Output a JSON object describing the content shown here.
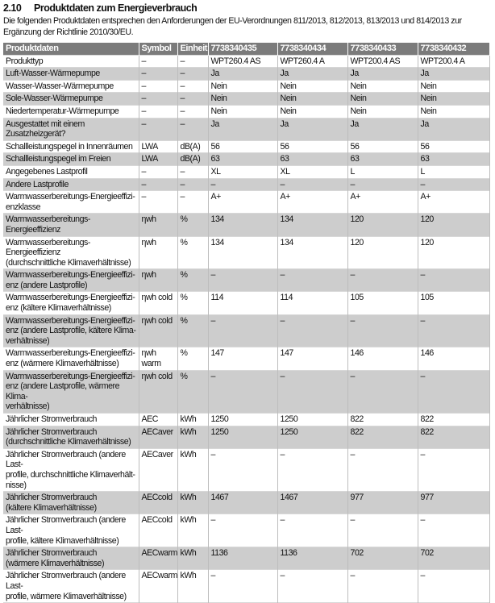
{
  "section": {
    "number": "2.10",
    "title": "Produktdaten zum Energieverbrauch"
  },
  "intro": "Die folgenden Produktdaten entsprechen den Anforderungen der EU-Verordnungen 811/2013, 812/2013, 813/2013 und 814/2013 zur Ergänzung der Richtlinie 2010/30/EU.",
  "table": {
    "headers": [
      "Produktdaten",
      "Symbol",
      "Einheit",
      "7738340435",
      "7738340434",
      "7738340433",
      "7738340432"
    ],
    "rows": [
      [
        "Produkttyp",
        "–",
        "–",
        "WPT260.4 AS",
        "WPT260.4 A",
        "WPT200.4 AS",
        "WPT200.4 A"
      ],
      [
        "Luft-Wasser-Wärmepumpe",
        "–",
        "–",
        "Ja",
        "Ja",
        "Ja",
        "Ja"
      ],
      [
        "Wasser-Wasser-Wärmepumpe",
        "–",
        "–",
        "Nein",
        "Nein",
        "Nein",
        "Nein"
      ],
      [
        "Sole-Wasser-Wärmepumpe",
        "–",
        "–",
        "Nein",
        "Nein",
        "Nein",
        "Nein"
      ],
      [
        "Niedertemperatur-Wärmepumpe",
        "–",
        "–",
        "Nein",
        "Nein",
        "Nein",
        "Nein"
      ],
      [
        "Ausgestattet mit einem Zusatzheizgerät?",
        "–",
        "–",
        "Ja",
        "Ja",
        "Ja",
        "Ja"
      ],
      [
        "Schallleistungspegel in Innenräumen",
        "LWA",
        "dB(A)",
        "56",
        "56",
        "56",
        "56"
      ],
      [
        "Schallleistungspegel im Freien",
        "LWA",
        "dB(A)",
        "63",
        "63",
        "63",
        "63"
      ],
      [
        "Angegebenes Lastprofil",
        "–",
        "–",
        "XL",
        "XL",
        "L",
        "L"
      ],
      [
        "Andere Lastprofile",
        "–",
        "–",
        "–",
        "–",
        "–",
        "–"
      ],
      [
        "Warmwasserbereitungs-Energieeffizi-\nenzklasse",
        "–",
        "–",
        "A+",
        "A+",
        "A+",
        "A+"
      ],
      [
        "Warmwasserbereitungs-Energieeffizienz",
        "ηwh",
        "%",
        "134",
        "134",
        "120",
        "120"
      ],
      [
        "Warmwasserbereitungs-Energieeffizienz\n(durchschnittliche Klimaverhältnisse)",
        "ηwh",
        "%",
        "134",
        "134",
        "120",
        "120"
      ],
      [
        "Warmwasserbereitungs-Energieeffizi-\nenz (andere Lastprofile)",
        "ηwh",
        "%",
        "–",
        "–",
        "–",
        "–"
      ],
      [
        "Warmwasserbereitungs-Energieeffizi-\nenz (kältere Klimaverhältnisse)",
        "ηwh cold",
        "%",
        "114",
        "114",
        "105",
        "105"
      ],
      [
        "Warmwasserbereitungs-Energieeffizi-\nenz (andere Lastprofile, kältere Klima-\nverhältnisse)",
        "ηwh cold",
        "%",
        "–",
        "–",
        "–",
        "–"
      ],
      [
        "Warmwasserbereitungs-Energieeffizi-\nenz (wärmere Klimaverhältnisse)",
        "ηwh warm",
        "%",
        "147",
        "147",
        "146",
        "146"
      ],
      [
        "Warmwasserbereitungs-Energieeffizi-\nenz (andere Lastprofile, wärmere Klima-\nverhältnisse)",
        "ηwh cold",
        "%",
        "–",
        "–",
        "–",
        "–"
      ],
      [
        "Jährlicher Stromverbrauch",
        "AEC",
        "kWh",
        "1250",
        "1250",
        "822",
        "822"
      ],
      [
        "Jährlicher Stromverbrauch\n(durchschnittliche Klimaverhältnisse)",
        "AECaver",
        "kWh",
        "1250",
        "1250",
        "822",
        "822"
      ],
      [
        "Jährlicher Stromverbrauch (andere Last-\nprofile, durchschnittliche Klimaverhält-\nnisse)",
        "AECaver",
        "kWh",
        "–",
        "–",
        "–",
        "–"
      ],
      [
        "Jährlicher Stromverbrauch\n(kältere Klimaverhältnisse)",
        "AECcold",
        "kWh",
        "1467",
        "1467",
        "977",
        "977"
      ],
      [
        "Jährlicher Stromverbrauch (andere Last-\nprofile, kältere Klimaverhältnisse)",
        "AECcold",
        "kWh",
        "–",
        "–",
        "–",
        "–"
      ],
      [
        "Jährlicher Stromverbrauch\n(wärmere Klimaverhältnisse)",
        "AECwarm",
        "kWh",
        "1136",
        "1136",
        "702",
        "702"
      ],
      [
        "Jährlicher Stromverbrauch (andere Last-\nprofile, wärmere Klimaverhältnisse)",
        "AECwarm",
        "kWh",
        "–",
        "–",
        "–",
        "–"
      ]
    ]
  },
  "colors": {
    "header_bg": "#7b7b7b",
    "shaded_row": "#cdcdcd"
  }
}
